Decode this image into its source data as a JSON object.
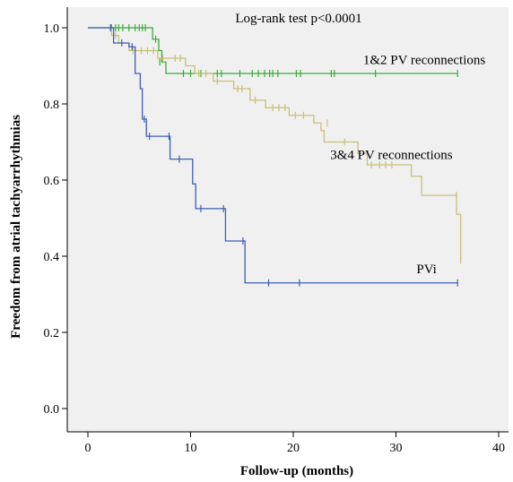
{
  "chart_data": {
    "type": "line",
    "subtype": "kaplan-meier",
    "title": "",
    "xlabel": "Follow-up (months)",
    "ylabel": "Freedom from atrial tachyarrhythmias",
    "xlim": [
      0,
      40
    ],
    "ylim": [
      0.0,
      1.0
    ],
    "xticks": [
      0,
      10,
      20,
      30,
      40
    ],
    "xtick_labels": [
      "0",
      "10",
      "20",
      "30",
      "40"
    ],
    "yticks": [
      0.0,
      0.2,
      0.4,
      0.6,
      0.8,
      1.0
    ],
    "ytick_labels": [
      "0.0",
      "0.2",
      "0.4",
      "0.6",
      "0.8",
      "1.0"
    ],
    "grid": false,
    "background": "#f0f0f0",
    "annotation": "Log-rank test p<0.0001",
    "series": [
      {
        "name": "1&2 PV reconnections",
        "color": "#3caa3c",
        "steps": [
          [
            0,
            1.0
          ],
          [
            6.3,
            0.97
          ],
          [
            6.9,
            0.94
          ],
          [
            7.2,
            0.91
          ],
          [
            7.6,
            0.88
          ],
          [
            36,
            0.88
          ]
        ],
        "censored": [
          [
            2.3,
            1.0
          ],
          [
            2.7,
            1.0
          ],
          [
            3.0,
            1.0
          ],
          [
            3.4,
            1.0
          ],
          [
            4.0,
            1.0
          ],
          [
            4.6,
            1.0
          ],
          [
            5.0,
            1.0
          ],
          [
            5.3,
            1.0
          ],
          [
            5.6,
            1.0
          ],
          [
            6.6,
            0.97
          ],
          [
            7.0,
            0.91
          ],
          [
            9.3,
            0.88
          ],
          [
            10.0,
            0.88
          ],
          [
            11.0,
            0.88
          ],
          [
            12.6,
            0.88
          ],
          [
            13.0,
            0.88
          ],
          [
            14.8,
            0.88
          ],
          [
            16.0,
            0.88
          ],
          [
            16.6,
            0.88
          ],
          [
            17.2,
            0.88
          ],
          [
            17.7,
            0.88
          ],
          [
            18.0,
            0.88
          ],
          [
            18.5,
            0.88
          ],
          [
            20.3,
            0.88
          ],
          [
            20.7,
            0.88
          ],
          [
            23.7,
            0.88
          ],
          [
            24.0,
            0.88
          ],
          [
            28.0,
            0.88
          ],
          [
            36.0,
            0.88
          ]
        ],
        "label_anchor": [
          26.8,
          0.905
        ]
      },
      {
        "name": "3&4 PV reconnections",
        "color": "#c8c078",
        "steps": [
          [
            0,
            1.0
          ],
          [
            2.3,
            0.98
          ],
          [
            3.0,
            0.96
          ],
          [
            4.0,
            0.94
          ],
          [
            6.8,
            0.92
          ],
          [
            9.5,
            0.9
          ],
          [
            10.4,
            0.88
          ],
          [
            12.2,
            0.86
          ],
          [
            14.2,
            0.84
          ],
          [
            15.8,
            0.81
          ],
          [
            17.3,
            0.79
          ],
          [
            19.6,
            0.77
          ],
          [
            22.0,
            0.75
          ],
          [
            22.7,
            0.73
          ],
          [
            23.0,
            0.7
          ],
          [
            26.3,
            0.67
          ],
          [
            27.2,
            0.64
          ],
          [
            31.5,
            0.61
          ],
          [
            32.5,
            0.56
          ],
          [
            35.9,
            0.51
          ],
          [
            36.3,
            0.39
          ]
        ],
        "censored": [
          [
            2.7,
            0.98
          ],
          [
            4.4,
            0.94
          ],
          [
            5.2,
            0.94
          ],
          [
            5.8,
            0.94
          ],
          [
            6.4,
            0.94
          ],
          [
            7.3,
            0.92
          ],
          [
            8.5,
            0.92
          ],
          [
            9.0,
            0.92
          ],
          [
            10.8,
            0.88
          ],
          [
            11.5,
            0.88
          ],
          [
            12.6,
            0.86
          ],
          [
            14.6,
            0.84
          ],
          [
            15.0,
            0.84
          ],
          [
            16.3,
            0.81
          ],
          [
            18.0,
            0.79
          ],
          [
            18.6,
            0.79
          ],
          [
            19.2,
            0.79
          ],
          [
            20.2,
            0.77
          ],
          [
            21.0,
            0.77
          ],
          [
            23.3,
            0.75
          ],
          [
            25.0,
            0.7
          ],
          [
            27.6,
            0.64
          ],
          [
            28.4,
            0.64
          ],
          [
            29.0,
            0.64
          ],
          [
            29.6,
            0.64
          ],
          [
            35.9,
            0.56
          ],
          [
            36.3,
            0.39
          ]
        ],
        "label_anchor": [
          23.6,
          0.655
        ]
      },
      {
        "name": "PVi",
        "color": "#3c5fb4",
        "steps": [
          [
            0,
            1.0
          ],
          [
            2.5,
            0.96
          ],
          [
            4.0,
            0.95
          ],
          [
            4.6,
            0.88
          ],
          [
            5.1,
            0.84
          ],
          [
            5.3,
            0.76
          ],
          [
            5.7,
            0.715
          ],
          [
            8.0,
            0.655
          ],
          [
            10.2,
            0.59
          ],
          [
            10.5,
            0.525
          ],
          [
            13.4,
            0.44
          ],
          [
            15.3,
            0.33
          ],
          [
            36,
            0.33
          ]
        ],
        "censored": [
          [
            2.2,
            1.0
          ],
          [
            3.3,
            0.96
          ],
          [
            4.3,
            0.95
          ],
          [
            5.5,
            0.76
          ],
          [
            6.0,
            0.715
          ],
          [
            7.9,
            0.715
          ],
          [
            8.9,
            0.655
          ],
          [
            11.0,
            0.525
          ],
          [
            13.2,
            0.525
          ],
          [
            15.1,
            0.44
          ],
          [
            17.6,
            0.33
          ],
          [
            20.6,
            0.33
          ],
          [
            36.0,
            0.33
          ]
        ],
        "label_anchor": [
          32.0,
          0.355
        ]
      }
    ]
  }
}
